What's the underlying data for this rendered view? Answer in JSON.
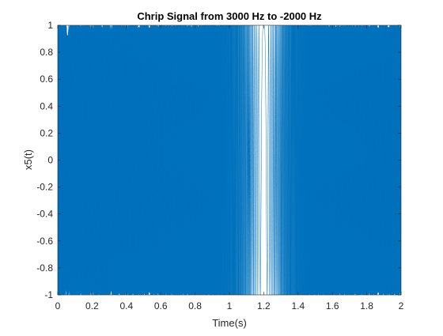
{
  "chart_data": {
    "type": "line",
    "title": "Chrip Signal from 3000 Hz to -2000 Hz",
    "xlabel": "Time(s)",
    "ylabel": "x5(t)",
    "xlim": [
      0,
      2
    ],
    "ylim": [
      -1,
      1
    ],
    "x_ticks": [
      0,
      0.2,
      0.4,
      0.6,
      0.8,
      1,
      1.2,
      1.4,
      1.6,
      1.8,
      2
    ],
    "x_tick_labels": [
      "0",
      "0.2",
      "0.4",
      "0.6",
      "0.8",
      "1",
      "1.2",
      "1.4",
      "1.6",
      "1.8",
      "2"
    ],
    "y_ticks": [
      -1,
      -0.8,
      -0.6,
      -0.4,
      -0.2,
      0,
      0.2,
      0.4,
      0.6,
      0.8,
      1
    ],
    "y_tick_labels": [
      "-1",
      "-0.8",
      "-0.6",
      "-0.4",
      "-0.2",
      "0",
      "0.2",
      "0.4",
      "0.6",
      "0.8",
      "1"
    ],
    "grid": false,
    "series": [
      {
        "color": "#0072BD",
        "signal": {
          "kind": "linear chirp",
          "f0_hz": 3000,
          "f1_hz": -2000,
          "t_start": 0,
          "t_end": 2,
          "amplitude": 1
        }
      }
    ]
  }
}
